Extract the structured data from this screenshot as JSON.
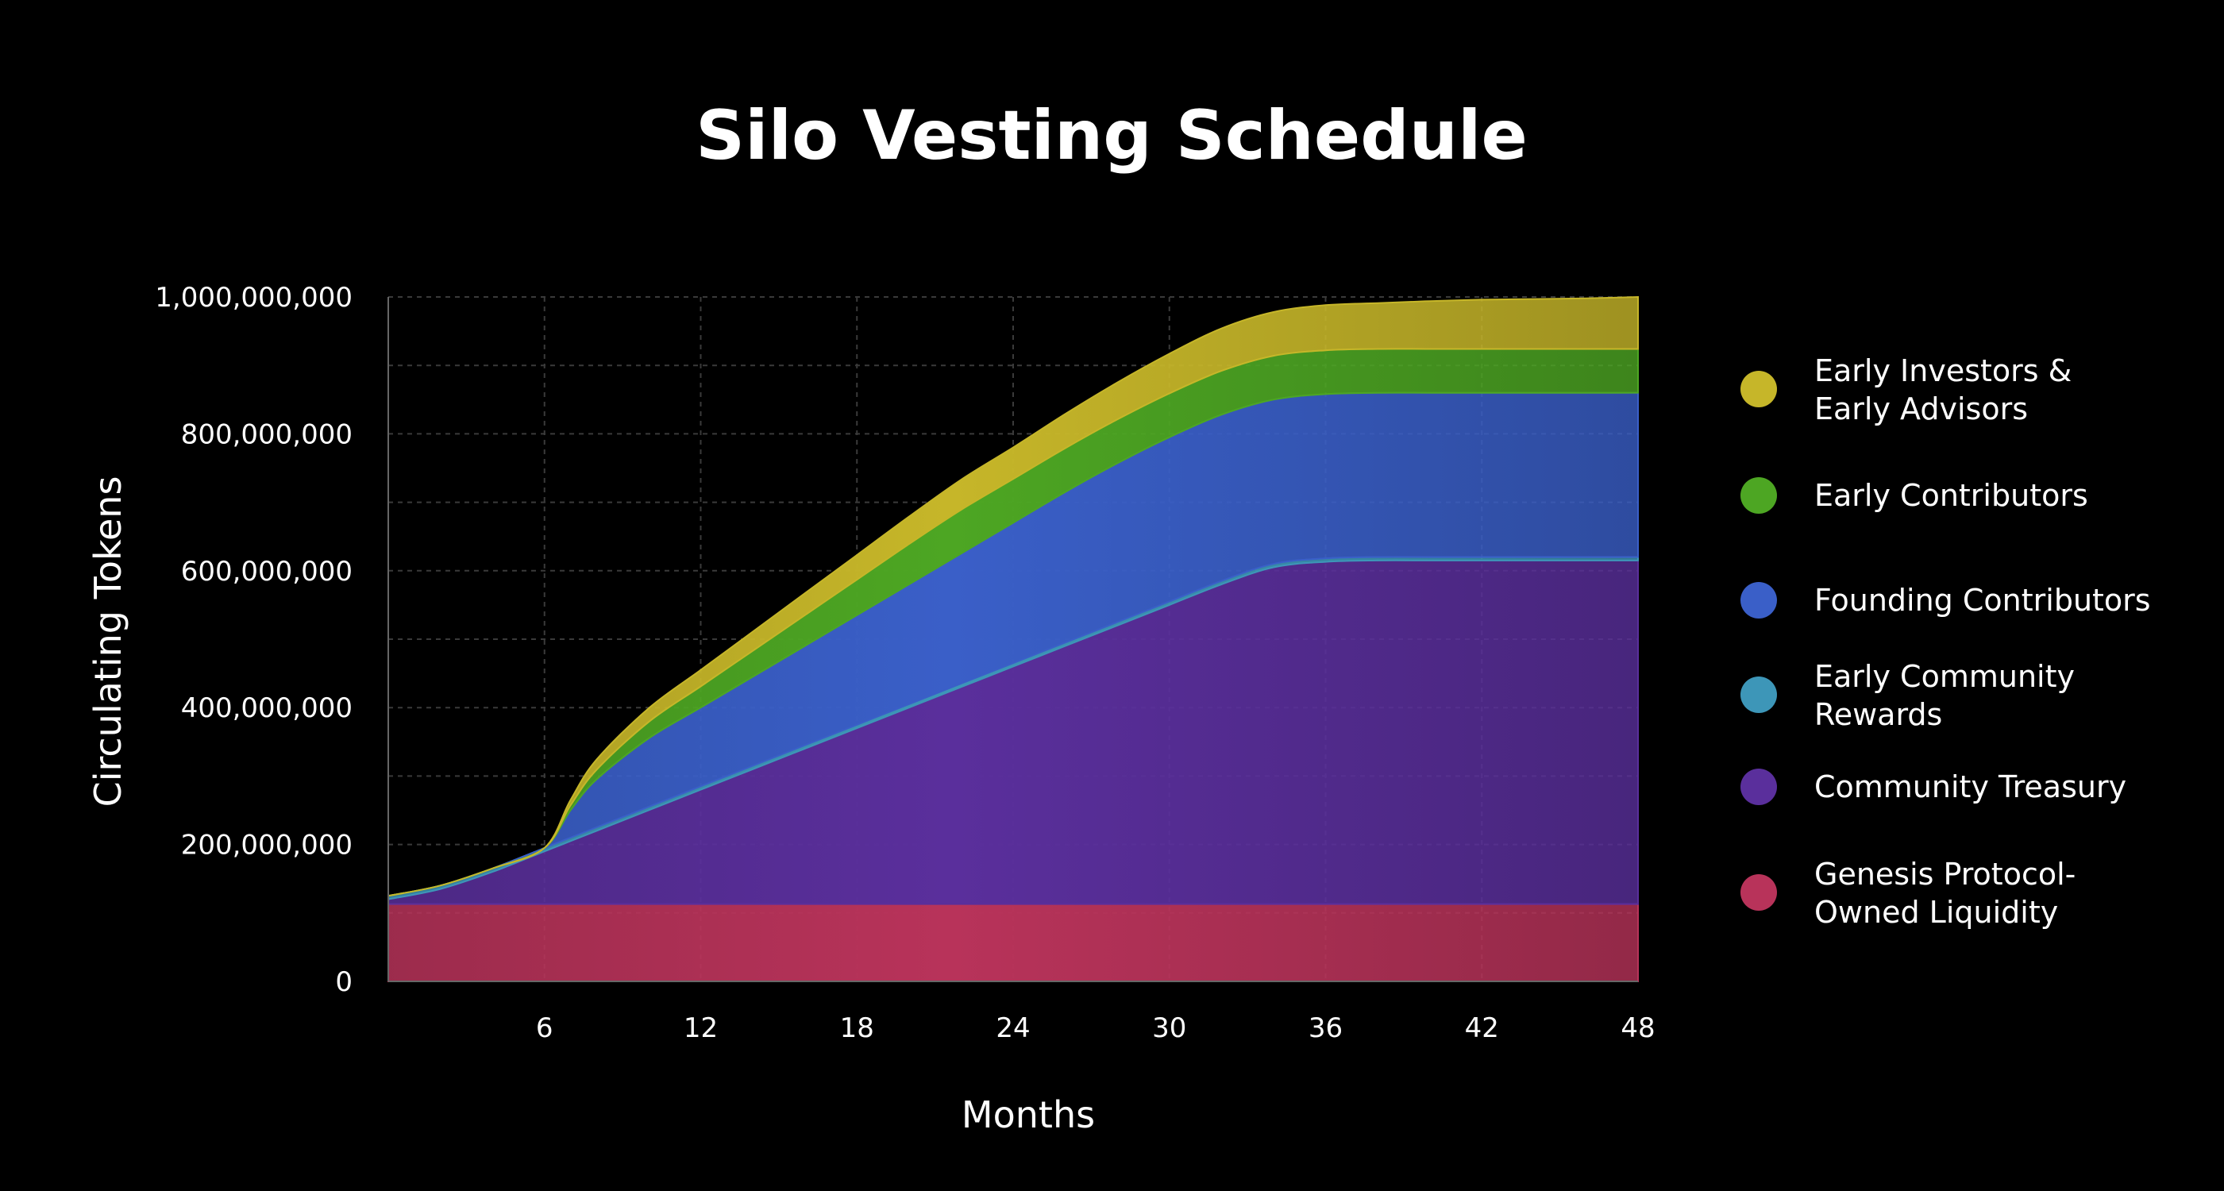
{
  "chart_data": {
    "type": "area",
    "stacked": true,
    "title": "Silo Vesting Schedule",
    "xlabel": "Months",
    "ylabel": "Circulating Tokens",
    "xlim": [
      0,
      48
    ],
    "ylim": [
      0,
      1000000000
    ],
    "x_ticks": [
      "6",
      "12",
      "18",
      "24",
      "30",
      "36",
      "42",
      "48"
    ],
    "y_ticks": [
      "0",
      "200,000,000",
      "400,000,000",
      "600,000,000",
      "800,000,000",
      "1,000,000,000"
    ],
    "grid": true,
    "legend_position": "right",
    "x": [
      0,
      2,
      4,
      6,
      7,
      8,
      10,
      12,
      14,
      16,
      18,
      20,
      22,
      24,
      26,
      28,
      30,
      32,
      34,
      36,
      38,
      40,
      42,
      44,
      46,
      48
    ],
    "series": [
      {
        "name": "Genesis Protocol-Owned Liquidity",
        "color": "#b8335a",
        "values": [
          113000000,
          113000000,
          113000000,
          113000000,
          113000000,
          113000000,
          113000000,
          113000000,
          113000000,
          113000000,
          113000000,
          113000000,
          113000000,
          113000000,
          113000000,
          113000000,
          113000000,
          113000000,
          113000000,
          113000000,
          113000000,
          113000000,
          113000000,
          113000000,
          113000000,
          113000000
        ]
      },
      {
        "name": "Community Treasury",
        "color": "#5a2f9c",
        "values": [
          7000000,
          22000000,
          47000000,
          77000000,
          92000000,
          107000000,
          137000000,
          167000000,
          197000000,
          227000000,
          257000000,
          287000000,
          317000000,
          347000000,
          377000000,
          407000000,
          437000000,
          467000000,
          492000000,
          500000000,
          502000000,
          502000000,
          502000000,
          502000000,
          502000000,
          502000000
        ]
      },
      {
        "name": "Early Community Rewards",
        "color": "#3d96b8",
        "values": [
          5000000,
          5000000,
          5000000,
          5000000,
          5000000,
          5000000,
          5000000,
          5000000,
          5000000,
          5000000,
          5000000,
          5000000,
          5000000,
          5000000,
          5000000,
          5000000,
          5000000,
          5000000,
          5000000,
          5000000,
          5000000,
          5000000,
          5000000,
          5000000,
          5000000,
          5000000
        ]
      },
      {
        "name": "Founding Contributors",
        "color": "#3a5fc8",
        "values": [
          0,
          0,
          0,
          0,
          40000000,
          70000000,
          100000000,
          115000000,
          130000000,
          145000000,
          160000000,
          175000000,
          190000000,
          205000000,
          220000000,
          232000000,
          240000000,
          243000000,
          240000000,
          240000000,
          240000000,
          240000000,
          240000000,
          240000000,
          240000000,
          240000000
        ]
      },
      {
        "name": "Early Contributors",
        "color": "#4da623",
        "values": [
          0,
          0,
          0,
          0,
          7000000,
          14000000,
          24000000,
          31000000,
          38000000,
          45000000,
          52000000,
          59000000,
          64000000,
          64000000,
          64000000,
          64000000,
          64000000,
          64000000,
          64000000,
          64000000,
          64000000,
          64000000,
          64000000,
          64000000,
          64000000,
          64000000
        ]
      },
      {
        "name": "Early Investors & Early Advisors",
        "color": "#c6b629",
        "values": [
          0,
          0,
          0,
          0,
          8000000,
          15000000,
          20000000,
          24000000,
          28000000,
          32000000,
          36000000,
          40000000,
          44000000,
          46000000,
          50000000,
          54000000,
          58000000,
          62000000,
          64000000,
          66000000,
          67000000,
          70000000,
          72000000,
          73000000,
          74000000,
          76000000
        ]
      }
    ],
    "legend": [
      {
        "label": "Early Investors &",
        "label2": "Early Advisors",
        "color": "#c6b629"
      },
      {
        "label": "Early Contributors",
        "label2": "",
        "color": "#4da623"
      },
      {
        "label": "Founding Contributors",
        "label2": "",
        "color": "#3a5fc8"
      },
      {
        "label": "Early Community",
        "label2": "Rewards",
        "color": "#3d96b8"
      },
      {
        "label": "Community Treasury",
        "label2": "",
        "color": "#5a2f9c"
      },
      {
        "label": "Genesis Protocol-",
        "label2": "Owned Liquidity",
        "color": "#b8335a"
      }
    ]
  }
}
